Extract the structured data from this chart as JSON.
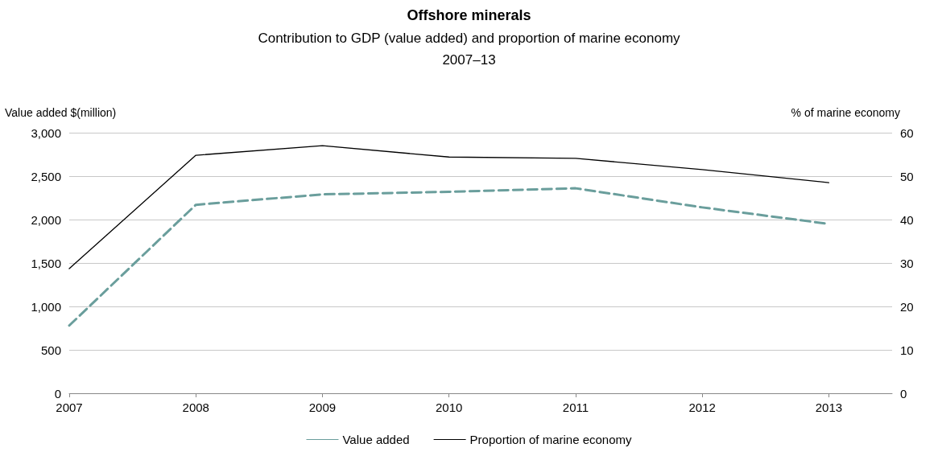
{
  "chart_data": {
    "type": "line",
    "title": "Offshore minerals",
    "subtitle": "Contribution to GDP (value added) and proportion of marine economy\n2007–13",
    "ylabel": "Value added $(million)",
    "y2label": "% of marine economy",
    "x": [
      2007,
      2008,
      2009,
      2010,
      2011,
      2012,
      2013
    ],
    "xlim": [
      2007,
      2013.5
    ],
    "xticks": [
      2007,
      2008,
      2009,
      2010,
      2011,
      2012,
      2013
    ],
    "ylim": [
      0,
      3000
    ],
    "yticks": [
      0,
      500,
      {
        "value": 1000,
        "label": "1,000"
      },
      {
        "value": 1500,
        "label": "1,500"
      },
      {
        "value": 2000,
        "label": "2,000"
      },
      {
        "value": 2500,
        "label": "2,500"
      },
      {
        "value": 3000,
        "label": "3,000"
      }
    ],
    "y2lim": [
      0,
      60
    ],
    "y2ticks": [
      0,
      10,
      20,
      30,
      40,
      50,
      60
    ],
    "series": [
      {
        "name": "Value added",
        "color": "#6a9e9c",
        "line_style": "dashed",
        "values": [
          780,
          2170,
          2290,
          2320,
          2360,
          2140,
          1950
        ]
      },
      {
        "name": "Proportion of marine economy",
        "color": "#000000",
        "line_style": "solid",
        "axis": "y2",
        "values": [
          28.7,
          54.8,
          57.0,
          54.4,
          54.1,
          51.5,
          48.5
        ]
      }
    ],
    "grid": "y",
    "legend": "bottom",
    "marker": "none"
  }
}
